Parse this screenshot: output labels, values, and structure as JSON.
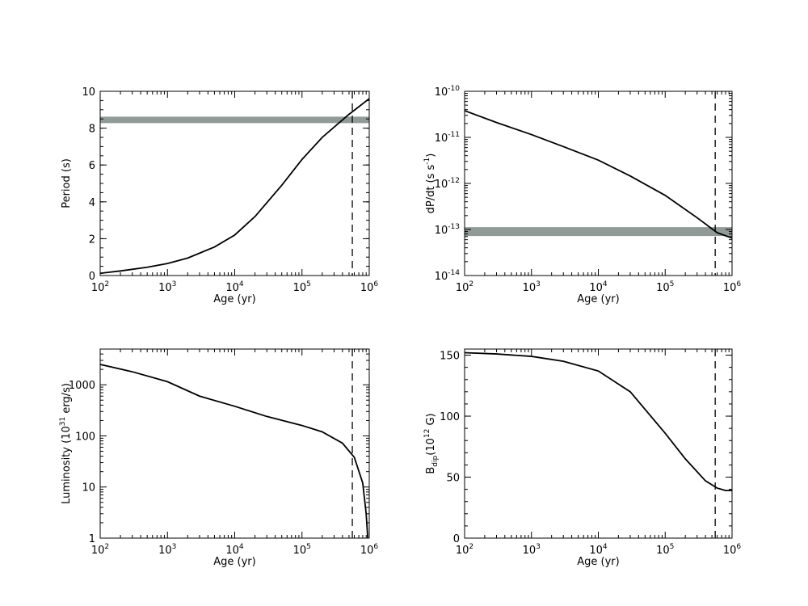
{
  "chart_data": [
    {
      "type": "line",
      "xlabel": "Age (yr)",
      "ylabel": "Period (s)",
      "xscale": "log",
      "yscale": "linear",
      "xlim": [
        100,
        1000000
      ],
      "ylim": [
        0,
        10
      ],
      "x_ticks": [
        {
          "base": "10",
          "exp": "2"
        },
        {
          "base": "10",
          "exp": "3"
        },
        {
          "base": "10",
          "exp": "4"
        },
        {
          "base": "10",
          "exp": "5"
        },
        {
          "base": "10",
          "exp": "6"
        }
      ],
      "y_ticks": [
        "0",
        "2",
        "4",
        "6",
        "8",
        "10"
      ],
      "series": [
        {
          "color": "#000000",
          "style": "solid",
          "x": [
            100,
            200,
            500,
            1000,
            2000,
            5000,
            10000,
            20000,
            50000,
            100000,
            200000,
            500000,
            1000000
          ],
          "y": [
            0.12,
            0.25,
            0.45,
            0.65,
            0.95,
            1.55,
            2.2,
            3.2,
            4.9,
            6.3,
            7.5,
            8.75,
            9.6
          ]
        }
      ],
      "hbands": [
        {
          "y": 8.45,
          "color": "#909a96",
          "width": 8
        }
      ],
      "vlines": [
        {
          "x": 560000,
          "style": "dashed",
          "color": "#000000"
        }
      ]
    },
    {
      "type": "line",
      "xlabel": "Age (yr)",
      "ylabel": {
        "prefix": "dP/dt (s s",
        "sup": "-1",
        "suffix": ")"
      },
      "xscale": "log",
      "yscale": "log",
      "xlim": [
        100,
        1000000
      ],
      "ylim": [
        1e-14,
        1e-10
      ],
      "x_ticks": [
        {
          "base": "10",
          "exp": "2"
        },
        {
          "base": "10",
          "exp": "3"
        },
        {
          "base": "10",
          "exp": "4"
        },
        {
          "base": "10",
          "exp": "5"
        },
        {
          "base": "10",
          "exp": "6"
        }
      ],
      "y_ticks": [
        {
          "base": "10",
          "exp": "-14"
        },
        {
          "base": "10",
          "exp": "-13"
        },
        {
          "base": "10",
          "exp": "-12"
        },
        {
          "base": "10",
          "exp": "-11"
        },
        {
          "base": "10",
          "exp": "-10"
        }
      ],
      "series": [
        {
          "color": "#000000",
          "style": "solid",
          "x": [
            100,
            300,
            1000,
            3000,
            10000,
            30000,
            100000,
            300000,
            600000,
            1000000
          ],
          "y": [
            3.8e-11,
            2.1e-11,
            1.15e-11,
            6.3e-12,
            3.2e-12,
            1.45e-12,
            5.5e-13,
            1.8e-13,
            8.5e-14,
            6.5e-14
          ]
        }
      ],
      "hbands": [
        {
          "y": 9e-14,
          "color": "#909a96",
          "width": 11
        }
      ],
      "vlines": [
        {
          "x": 560000,
          "style": "dashed",
          "color": "#000000"
        }
      ]
    },
    {
      "type": "line",
      "xlabel": "Age (yr)",
      "ylabel": {
        "prefix": "Luminosity (10",
        "sup": "31",
        "suffix": " erg/s)"
      },
      "xscale": "log",
      "yscale": "log",
      "xlim": [
        100,
        1000000
      ],
      "ylim": [
        1,
        5000
      ],
      "x_ticks": [
        {
          "base": "10",
          "exp": "2"
        },
        {
          "base": "10",
          "exp": "3"
        },
        {
          "base": "10",
          "exp": "4"
        },
        {
          "base": "10",
          "exp": "5"
        },
        {
          "base": "10",
          "exp": "6"
        }
      ],
      "y_ticks": [
        "1",
        "10",
        "100",
        "1000"
      ],
      "series": [
        {
          "color": "#000000",
          "style": "solid",
          "x": [
            100,
            300,
            1000,
            3000,
            10000,
            30000,
            100000,
            200000,
            400000,
            600000,
            800000,
            900000,
            950000
          ],
          "y": [
            2500,
            1800,
            1150,
            600,
            380,
            240,
            160,
            120,
            72,
            38,
            12,
            3,
            1
          ]
        }
      ],
      "hbands": [],
      "vlines": [
        {
          "x": 560000,
          "style": "dashed",
          "color": "#000000"
        }
      ]
    },
    {
      "type": "line",
      "xlabel": "Age (yr)",
      "ylabel": {
        "prefix": "B",
        "sub": "dip",
        "mid": "(10",
        "sup": "12",
        "suffix": " G)"
      },
      "xscale": "log",
      "yscale": "linear",
      "xlim": [
        100,
        1000000
      ],
      "ylim": [
        0,
        155
      ],
      "x_ticks": [
        {
          "base": "10",
          "exp": "2"
        },
        {
          "base": "10",
          "exp": "3"
        },
        {
          "base": "10",
          "exp": "4"
        },
        {
          "base": "10",
          "exp": "5"
        },
        {
          "base": "10",
          "exp": "6"
        }
      ],
      "y_ticks": [
        "0",
        "50",
        "100",
        "150"
      ],
      "series": [
        {
          "color": "#000000",
          "style": "solid",
          "x": [
            100,
            300,
            1000,
            3000,
            10000,
            30000,
            100000,
            200000,
            400000,
            600000,
            800000,
            1000000
          ],
          "y": [
            152,
            151,
            149,
            145,
            137,
            120,
            86,
            65,
            47,
            41,
            39,
            39
          ]
        }
      ],
      "hbands": [],
      "vlines": [
        {
          "x": 560000,
          "style": "dashed",
          "color": "#000000"
        }
      ]
    }
  ]
}
